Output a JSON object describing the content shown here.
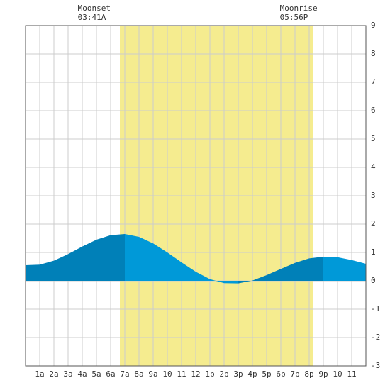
{
  "chart_data": {
    "type": "area",
    "x": [
      0,
      1,
      2,
      3,
      4,
      5,
      6,
      7,
      8,
      9,
      10,
      11,
      12,
      13,
      14,
      15,
      16,
      17,
      18,
      19,
      20,
      21,
      22,
      23,
      24
    ],
    "values": [
      0.55,
      0.57,
      0.71,
      0.94,
      1.21,
      1.45,
      1.61,
      1.65,
      1.55,
      1.32,
      1.0,
      0.65,
      0.32,
      0.06,
      -0.08,
      -0.09,
      0.01,
      0.2,
      0.42,
      0.63,
      0.79,
      0.85,
      0.83,
      0.73,
      0.6
    ],
    "rising_color": "#0080b8",
    "falling_color": "#0099d8",
    "daylight": [
      6.65,
      20.25
    ],
    "daylight_color": "#f5ec8f",
    "events": [
      {
        "label": "Moonset",
        "time": "03:41A"
      },
      {
        "label": "Moonrise",
        "time": "05:56P"
      }
    ],
    "xlim": [
      0,
      24
    ],
    "xticks": [
      {
        "value": 1,
        "label": "1a"
      },
      {
        "value": 2,
        "label": "2a"
      },
      {
        "value": 3,
        "label": "3a"
      },
      {
        "value": 4,
        "label": "4a"
      },
      {
        "value": 5,
        "label": "5a"
      },
      {
        "value": 6,
        "label": "6a"
      },
      {
        "value": 7,
        "label": "7a"
      },
      {
        "value": 8,
        "label": "8a"
      },
      {
        "value": 9,
        "label": "9a"
      },
      10,
      11,
      12,
      {
        "value": 13,
        "label": "1p"
      },
      {
        "value": 14,
        "label": "2p"
      },
      {
        "value": 15,
        "label": "3p"
      },
      {
        "value": 16,
        "label": "4p"
      },
      {
        "value": 17,
        "label": "5p"
      },
      {
        "value": 18,
        "label": "6p"
      },
      {
        "value": 19,
        "label": "7p"
      },
      {
        "value": 20,
        "label": "8p"
      },
      {
        "value": 21,
        "label": "9p"
      },
      {
        "value": 22,
        "label": "10"
      },
      {
        "value": 23,
        "label": "11"
      }
    ],
    "ylim": [
      -3,
      9
    ],
    "yticks": [
      -3,
      -2,
      -1,
      0,
      1,
      2,
      3,
      4,
      5,
      6,
      7,
      8,
      9
    ],
    "grid": true
  }
}
